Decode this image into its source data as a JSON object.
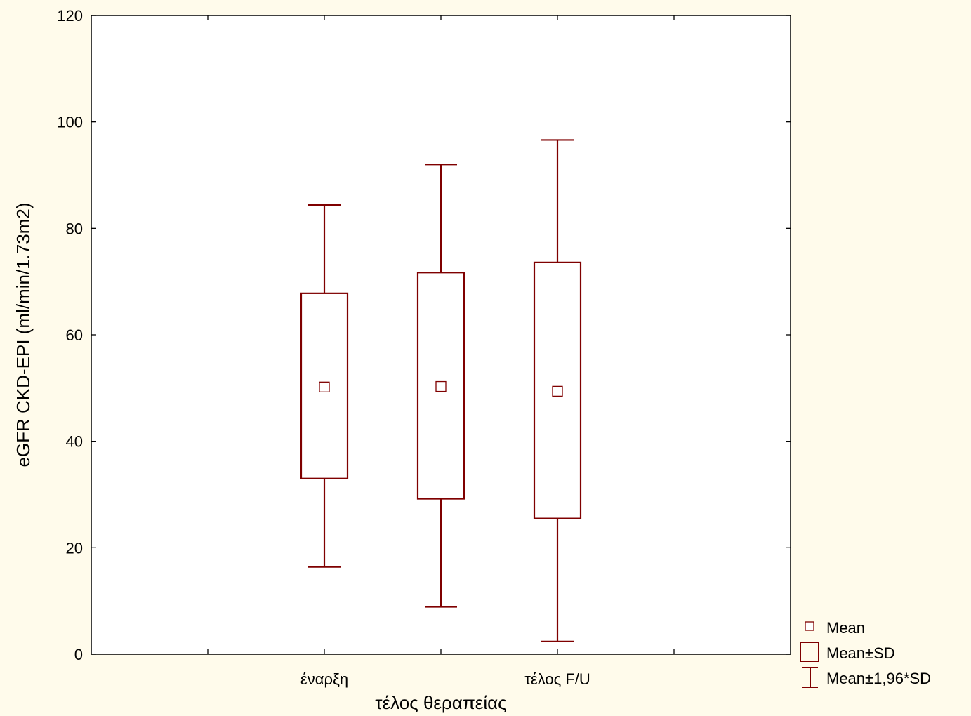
{
  "chart_data": {
    "type": "box",
    "xlabel": "τέλος θεραπείας",
    "ylabel": "eGFR CKD-EPI (ml/min/1.73m2)",
    "ylim": [
      0,
      120
    ],
    "yticks": [
      0,
      20,
      40,
      60,
      80,
      100,
      120
    ],
    "categories": [
      "έναρξη",
      "",
      "τέλος F/U"
    ],
    "series": [
      {
        "mean": 50.2,
        "sd_low": 33.0,
        "sd_high": 67.8,
        "ci_low": 16.4,
        "ci_high": 84.4
      },
      {
        "mean": 50.3,
        "sd_low": 29.2,
        "sd_high": 71.7,
        "ci_low": 8.9,
        "ci_high": 92.0
      },
      {
        "mean": 49.4,
        "sd_low": 25.5,
        "sd_high": 73.6,
        "ci_low": 2.4,
        "ci_high": 96.6
      }
    ],
    "legend": {
      "position": "bottom-right",
      "items": [
        "Mean",
        "Mean±SD",
        "Mean±1,96*SD"
      ]
    },
    "colors": {
      "series": "#7f0000",
      "axis": "#000000",
      "background": "#fffbeb",
      "plot_bg": "#ffffff"
    }
  }
}
